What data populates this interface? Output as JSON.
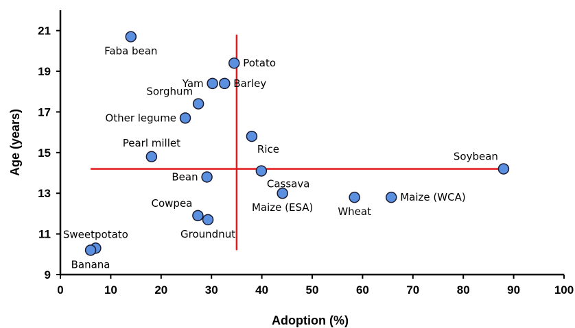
{
  "chart_data": {
    "type": "scatter",
    "title": "",
    "xlabel": "Adoption (%)",
    "ylabel": "Age (years)",
    "xlim": [
      0,
      100
    ],
    "ylim": [
      9,
      22
    ],
    "xticks": [
      0,
      10,
      20,
      30,
      40,
      50,
      60,
      70,
      80,
      90,
      100
    ],
    "yticks": [
      9,
      11,
      13,
      15,
      17,
      19,
      21
    ],
    "grid": false,
    "legend": "none",
    "marker_color": "#5b8fe0",
    "marker_edge": "#1a1a2e",
    "reference_line_color": "#e0191c",
    "points": [
      {
        "label": "Faba bean",
        "x": 14.0,
        "y": 20.7,
        "label_pos": "below"
      },
      {
        "label": "Potato",
        "x": 34.5,
        "y": 19.4,
        "label_pos": "right"
      },
      {
        "label": "Yam",
        "x": 30.2,
        "y": 18.4,
        "label_pos": "left"
      },
      {
        "label": "Barley",
        "x": 32.6,
        "y": 18.4,
        "label_pos": "right"
      },
      {
        "label": "Sorghum",
        "x": 27.4,
        "y": 17.4,
        "label_pos": "upper-left"
      },
      {
        "label": "Other legume",
        "x": 24.8,
        "y": 16.7,
        "label_pos": "left"
      },
      {
        "label": "Rice",
        "x": 38.0,
        "y": 15.8,
        "label_pos": "lower-right"
      },
      {
        "label": "Pearl millet",
        "x": 18.1,
        "y": 14.8,
        "label_pos": "above"
      },
      {
        "label": "Soybean",
        "x": 88.0,
        "y": 14.2,
        "label_pos": "upper-left"
      },
      {
        "label": "Cassava",
        "x": 39.9,
        "y": 14.1,
        "label_pos": "lower-right"
      },
      {
        "label": "Bean",
        "x": 29.1,
        "y": 13.8,
        "label_pos": "left"
      },
      {
        "label": "Maize (ESA)",
        "x": 44.1,
        "y": 13.0,
        "label_pos": "below"
      },
      {
        "label": "Wheat",
        "x": 58.4,
        "y": 12.8,
        "label_pos": "below"
      },
      {
        "label": "Maize (WCA)",
        "x": 65.7,
        "y": 12.8,
        "label_pos": "right"
      },
      {
        "label": "Cowpea",
        "x": 27.3,
        "y": 11.9,
        "label_pos": "upper-left"
      },
      {
        "label": "Groundnut",
        "x": 29.3,
        "y": 11.7,
        "label_pos": "below"
      },
      {
        "label": "Sweetpotato",
        "x": 7.0,
        "y": 10.3,
        "label_pos": "above"
      },
      {
        "label": "Banana",
        "x": 6.0,
        "y": 10.2,
        "label_pos": "below"
      }
    ],
    "reference_lines": [
      {
        "orientation": "vertical",
        "x": 35.0,
        "y_from": 10.2,
        "y_to": 20.8
      },
      {
        "orientation": "horizontal",
        "y": 14.2,
        "x_from": 6.0,
        "x_to": 88.0
      }
    ]
  }
}
